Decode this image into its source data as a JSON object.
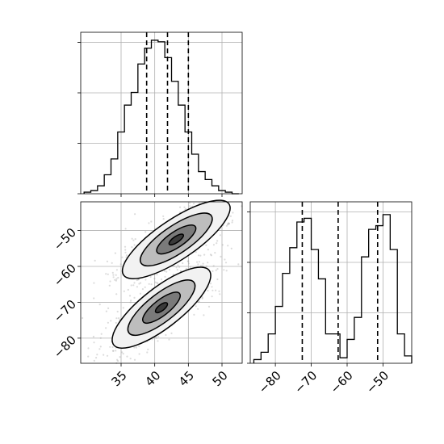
{
  "chart_data": [
    {
      "type": "histogram",
      "panel": "marginal-x",
      "xlim": [
        29,
        53
      ],
      "bin_edges": [
        29.5,
        30.5,
        31.5,
        32.5,
        33.5,
        34.5,
        35.5,
        36.5,
        37.5,
        38.5,
        39.5,
        40.5,
        41.5,
        42.5,
        43.5,
        44.5,
        45.5,
        46.5,
        47.5,
        48.5,
        49.5,
        50.5,
        51.5,
        52.5
      ],
      "counts": [
        1,
        2,
        5,
        12,
        22,
        39,
        56,
        64,
        82,
        92,
        97,
        96,
        86,
        71,
        56,
        39,
        25,
        14,
        9,
        5,
        2,
        1,
        0
      ],
      "ylim": [
        0,
        102
      ],
      "quantiles": [
        38.8,
        41.9,
        45.0
      ],
      "x_ticks": [
        35,
        40,
        45,
        50
      ]
    },
    {
      "type": "contour",
      "panel": "joint",
      "xlim": [
        29,
        53
      ],
      "ylim": [
        -87,
        -42
      ],
      "x_ticks": [
        35,
        40,
        45,
        50
      ],
      "y_ticks": [
        -50,
        -60,
        -70,
        -80
      ],
      "x_tick_labels": [
        "35",
        "40",
        "45",
        "50"
      ],
      "y_tick_labels": [
        "−50",
        "−60",
        "−70",
        "−80"
      ],
      "clusters": [
        {
          "center": [
            43.2,
            -52.5
          ],
          "levels": [
            {
              "rx": 10.5,
              "ry": 3.3,
              "angle": -34
            },
            {
              "rx": 7.0,
              "ry": 2.3,
              "angle": -34
            },
            {
              "rx": 3.8,
              "ry": 1.3,
              "angle": -34
            },
            {
              "rx": 1.4,
              "ry": 0.5,
              "angle": -34
            }
          ]
        },
        {
          "center": [
            41.0,
            -71.5
          ],
          "levels": [
            {
              "rx": 10.0,
              "ry": 3.3,
              "angle": -38
            },
            {
              "rx": 6.8,
              "ry": 2.3,
              "angle": -38
            },
            {
              "rx": 3.8,
              "ry": 1.3,
              "angle": -38
            },
            {
              "rx": 1.2,
              "ry": 0.5,
              "angle": -38
            }
          ]
        }
      ]
    },
    {
      "type": "histogram",
      "panel": "marginal-y",
      "xlim": [
        -87,
        -42
      ],
      "bin_edges": [
        -86,
        -84,
        -82,
        -80,
        -78,
        -76,
        -74,
        -72,
        -70,
        -68,
        -66,
        -64,
        -62,
        -60,
        -58,
        -56,
        -54,
        -52,
        -50,
        -48,
        -46,
        -44,
        -42
      ],
      "counts": [
        2,
        6,
        16,
        31,
        49,
        63,
        77,
        79,
        62,
        46,
        16,
        16,
        3,
        13,
        25,
        58,
        73,
        75,
        81,
        62,
        16,
        4
      ],
      "ylim": [
        0,
        88
      ],
      "quantiles": [
        -72.5,
        -62.5,
        -51.5
      ],
      "x_ticks": [
        -80,
        -70,
        -60,
        -50
      ],
      "x_tick_labels": [
        "−80",
        "−70",
        "−60",
        "−50"
      ]
    }
  ]
}
